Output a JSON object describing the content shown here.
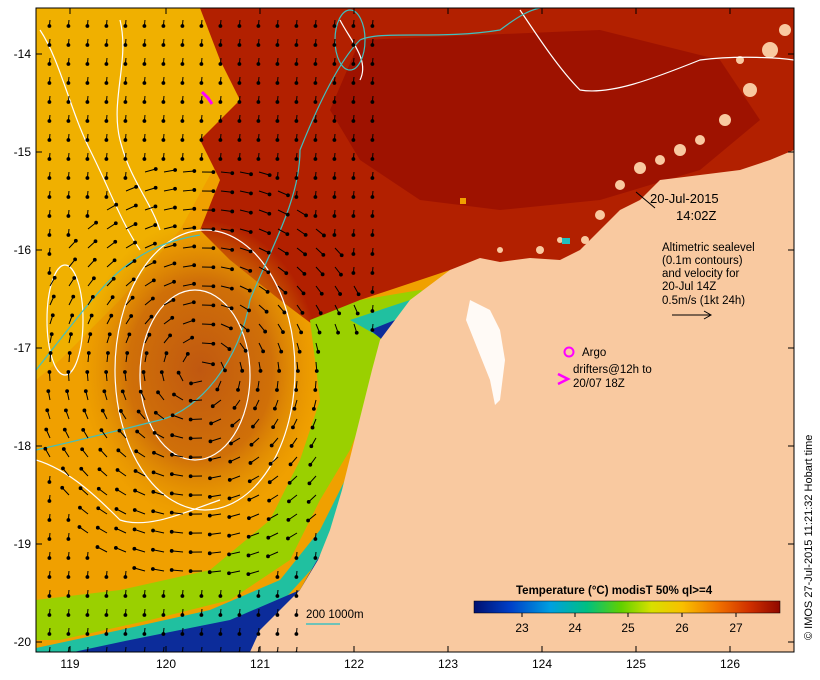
{
  "map": {
    "date_label": "20-Jul-2015",
    "time_label": "14:02Z",
    "x_ticks": [
      "119",
      "120",
      "121",
      "122",
      "123",
      "124",
      "125",
      "126"
    ],
    "y_ticks": [
      "-14",
      "-15",
      "-16",
      "-17",
      "-18",
      "-19",
      "-20"
    ],
    "colors": {
      "land": "#f9c9a0",
      "warm": "#a81800",
      "mid": "#f0a800",
      "cool": "#8ad000",
      "cold": "#002080",
      "contour": "#ffffff",
      "isobath": "#40c0c0",
      "drifter": "#ff00ff",
      "arrow": "#000000"
    }
  },
  "legend": {
    "altimetry_lines": [
      "Altimetric sealevel",
      "(0.1m contours)",
      "and velocity for",
      "20-Jul 14Z",
      "0.5m/s (1kt 24h)"
    ],
    "argo_label": "Argo",
    "drifters_lines": [
      "drifters@12h to",
      "20/07 18Z"
    ],
    "isobath_label": "200  1000m"
  },
  "colorbar": {
    "title": "Temperature (°C) modisT 50% ql>=4",
    "ticks": [
      "23",
      "24",
      "25",
      "26",
      "27"
    ]
  },
  "credit": "© IMOS 27-Jul-2015 11:21:32 Hobart time"
}
